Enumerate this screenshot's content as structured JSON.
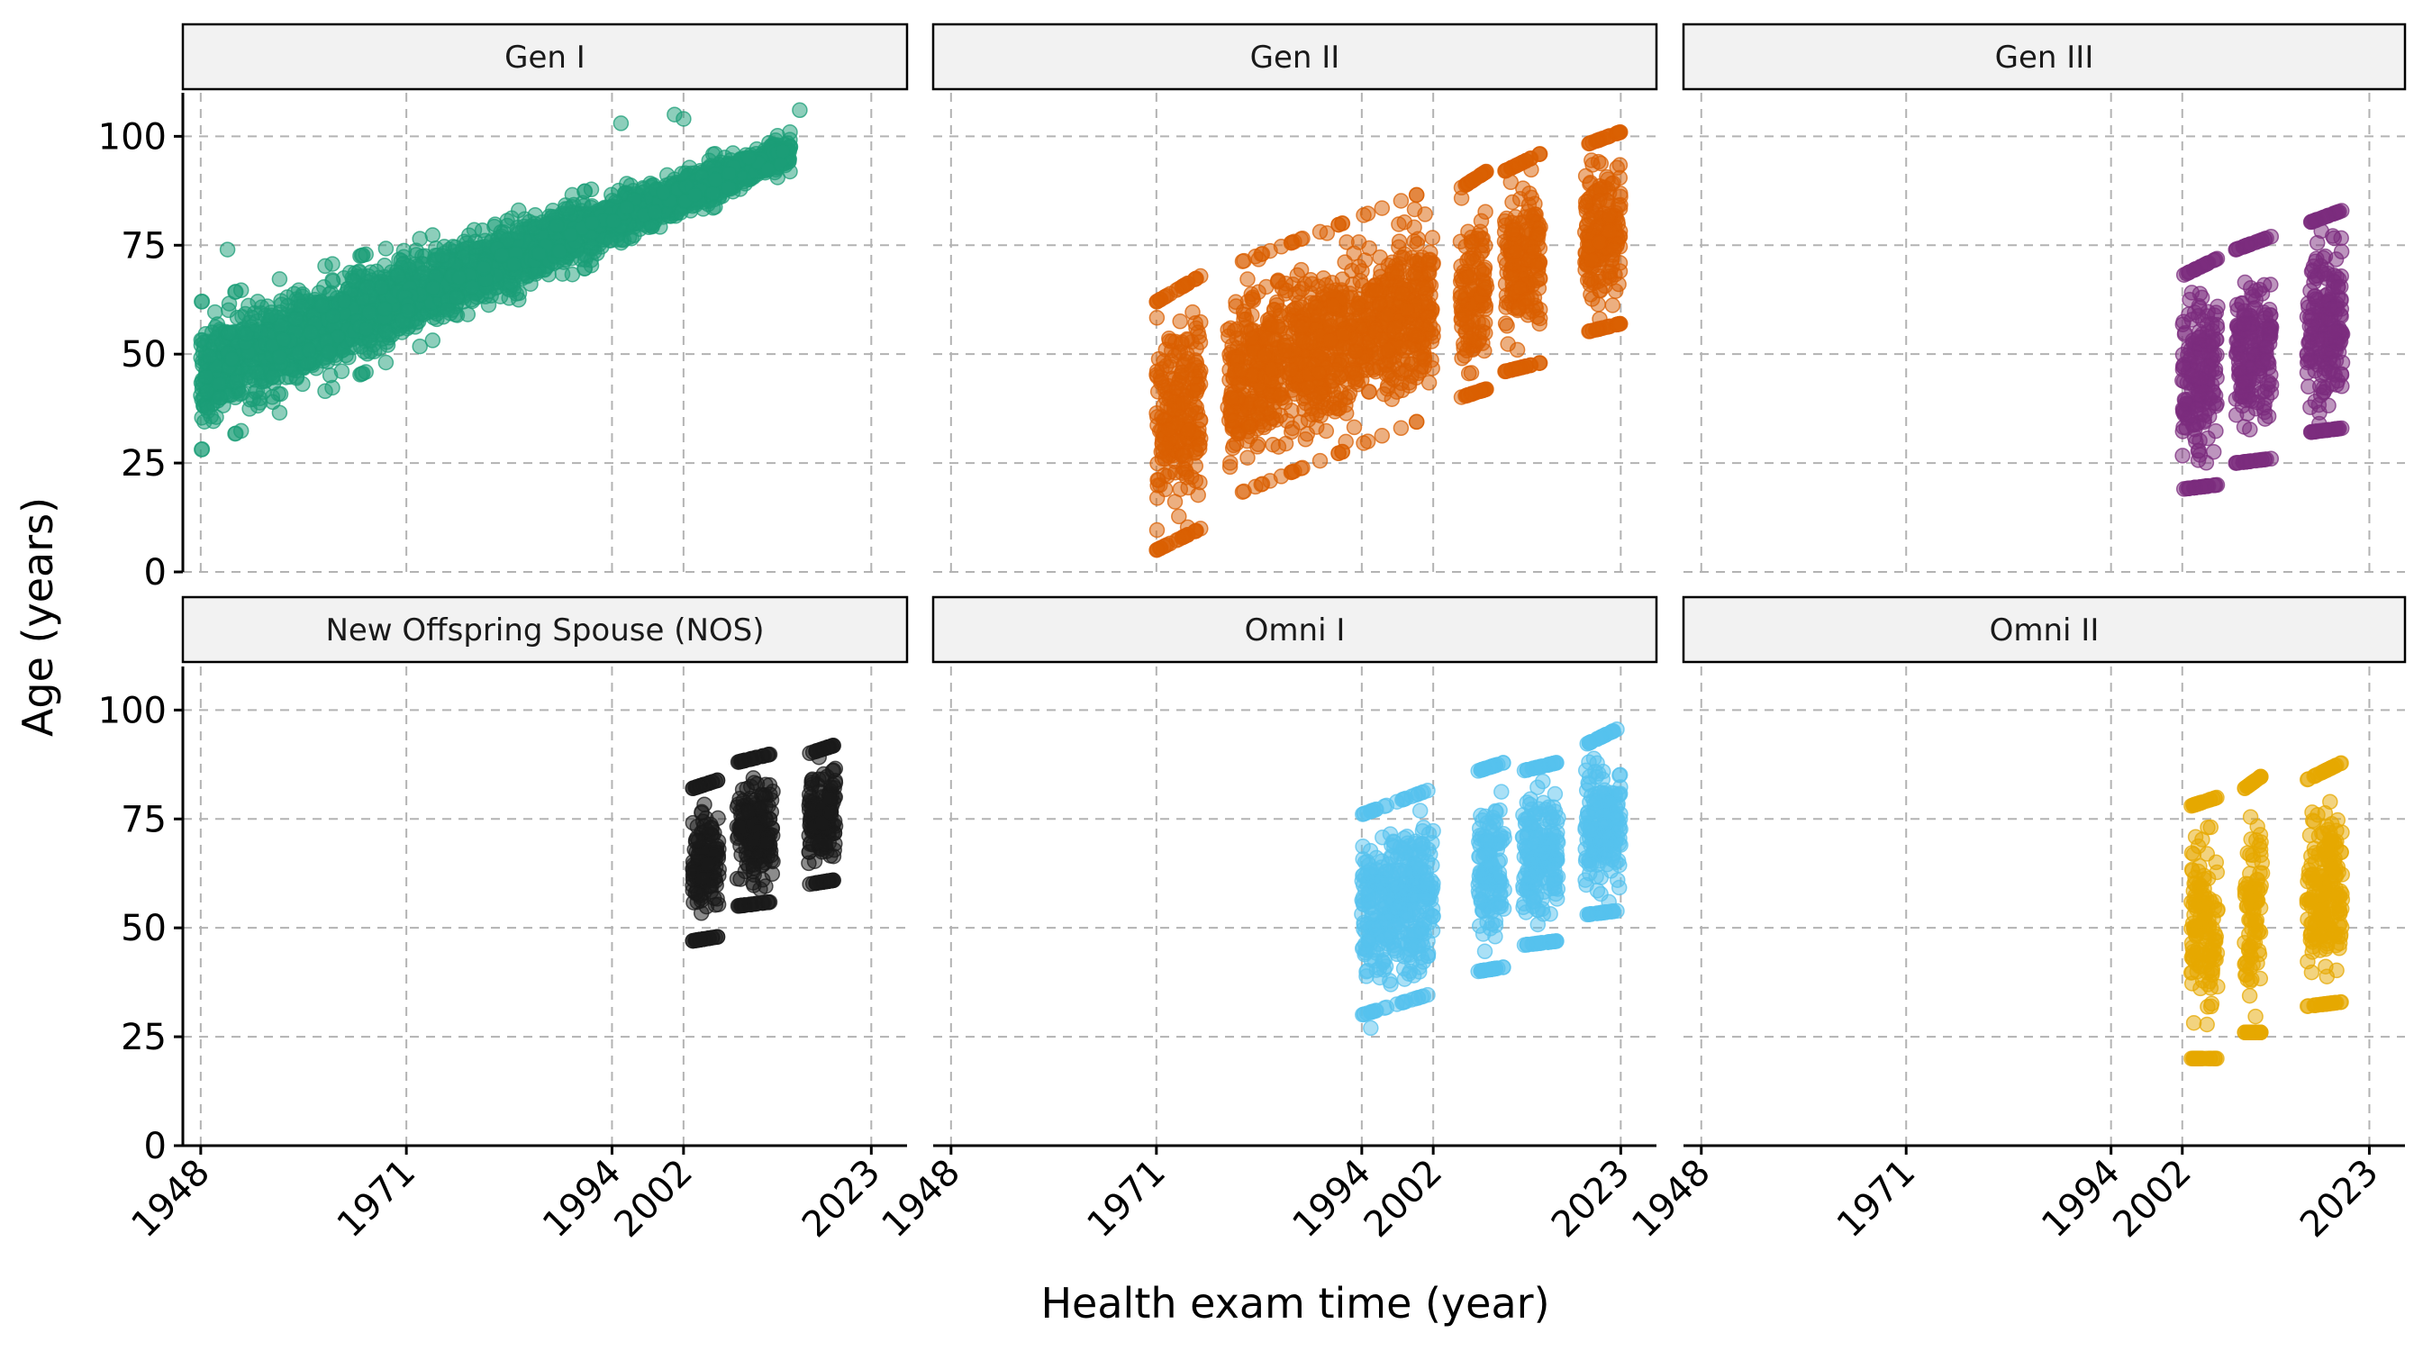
{
  "chart_data": {
    "type": "scatter",
    "layout": "facet 2x3",
    "xlabel": "Health exam time (year)",
    "ylabel": "Age (years)",
    "xlim": [
      1946,
      2027
    ],
    "ylim": [
      0,
      110
    ],
    "x_ticks": [
      1948,
      1971,
      1994,
      2002,
      2023
    ],
    "y_ticks": [
      0,
      25,
      50,
      75,
      100
    ],
    "grid": "dashed major",
    "legend": "none",
    "panels": [
      {
        "name": "Gen I",
        "color": "#1b9e77",
        "clusters": [
          {
            "x_range": [
              1948,
              2014
            ],
            "age_low_start": 28,
            "age_low_end": 92,
            "age_high_start": 62,
            "age_high_end": 101
          }
        ],
        "outliers": [
          {
            "x": 1951,
            "y": 74
          },
          {
            "x": 2002,
            "y": 104
          },
          {
            "x": 2001,
            "y": 105
          },
          {
            "x": 2015,
            "y": 106
          },
          {
            "x": 1995,
            "y": 103
          }
        ]
      },
      {
        "name": "Gen II",
        "color": "#d95f02",
        "clusters": [
          {
            "x_range": [
              1971,
              1976
            ],
            "age_low_start": 5,
            "age_low_end": 10,
            "age_high_start": 62,
            "age_high_end": 68
          },
          {
            "x_range": [
              1979,
              2002
            ],
            "age_low_start": 17,
            "age_low_end": 36,
            "age_high_start": 70,
            "age_high_end": 88
          },
          {
            "x_range": [
              2005,
              2008
            ],
            "age_low_start": 40,
            "age_low_end": 42,
            "age_high_start": 88,
            "age_high_end": 92
          },
          {
            "x_range": [
              2010,
              2014
            ],
            "age_low_start": 46,
            "age_low_end": 48,
            "age_high_start": 92,
            "age_high_end": 96
          },
          {
            "x_range": [
              2019,
              2023
            ],
            "age_low_start": 55,
            "age_low_end": 57,
            "age_high_start": 98,
            "age_high_end": 101
          }
        ],
        "outliers": []
      },
      {
        "name": "Gen III",
        "color": "#7b2c7e",
        "clusters": [
          {
            "x_range": [
              2002,
              2006
            ],
            "age_low_start": 19,
            "age_low_end": 20,
            "age_high_start": 68,
            "age_high_end": 72
          },
          {
            "x_range": [
              2008,
              2012
            ],
            "age_low_start": 25,
            "age_low_end": 26,
            "age_high_start": 74,
            "age_high_end": 77
          },
          {
            "x_range": [
              2016,
              2020
            ],
            "age_low_start": 32,
            "age_low_end": 33,
            "age_high_start": 80,
            "age_high_end": 83
          }
        ],
        "outliers": []
      },
      {
        "name": "New Offspring Spouse (NOS)",
        "color": "#1a1a1a",
        "clusters": [
          {
            "x_range": [
              2003,
              2006
            ],
            "age_low_start": 47,
            "age_low_end": 48,
            "age_high_start": 82,
            "age_high_end": 84
          },
          {
            "x_range": [
              2008,
              2012
            ],
            "age_low_start": 55,
            "age_low_end": 56,
            "age_high_start": 88,
            "age_high_end": 90
          },
          {
            "x_range": [
              2016,
              2019
            ],
            "age_low_start": 60,
            "age_low_end": 61,
            "age_high_start": 90,
            "age_high_end": 92
          }
        ],
        "outliers": []
      },
      {
        "name": "Omni I",
        "color": "#56c1ed",
        "clusters": [
          {
            "x_range": [
              1994,
              2002
            ],
            "age_low_start": 30,
            "age_low_end": 35,
            "age_high_start": 76,
            "age_high_end": 82
          },
          {
            "x_range": [
              2007,
              2010
            ],
            "age_low_start": 40,
            "age_low_end": 41,
            "age_high_start": 86,
            "age_high_end": 88
          },
          {
            "x_range": [
              2012,
              2016
            ],
            "age_low_start": 46,
            "age_low_end": 47,
            "age_high_start": 86,
            "age_high_end": 88
          },
          {
            "x_range": [
              2019,
              2023
            ],
            "age_low_start": 53,
            "age_low_end": 54,
            "age_high_start": 92,
            "age_high_end": 96
          }
        ],
        "outliers": [
          {
            "x": 1995,
            "y": 27
          }
        ]
      },
      {
        "name": "Omni II",
        "color": "#e6a800",
        "clusters": [
          {
            "x_range": [
              2003,
              2006
            ],
            "age_low_start": 20,
            "age_low_end": 20,
            "age_high_start": 78,
            "age_high_end": 80
          },
          {
            "x_range": [
              2009,
              2011
            ],
            "age_low_start": 26,
            "age_low_end": 26,
            "age_high_start": 82,
            "age_high_end": 85
          },
          {
            "x_range": [
              2016,
              2020
            ],
            "age_low_start": 32,
            "age_low_end": 33,
            "age_high_start": 84,
            "age_high_end": 88
          }
        ],
        "outliers": []
      }
    ]
  }
}
